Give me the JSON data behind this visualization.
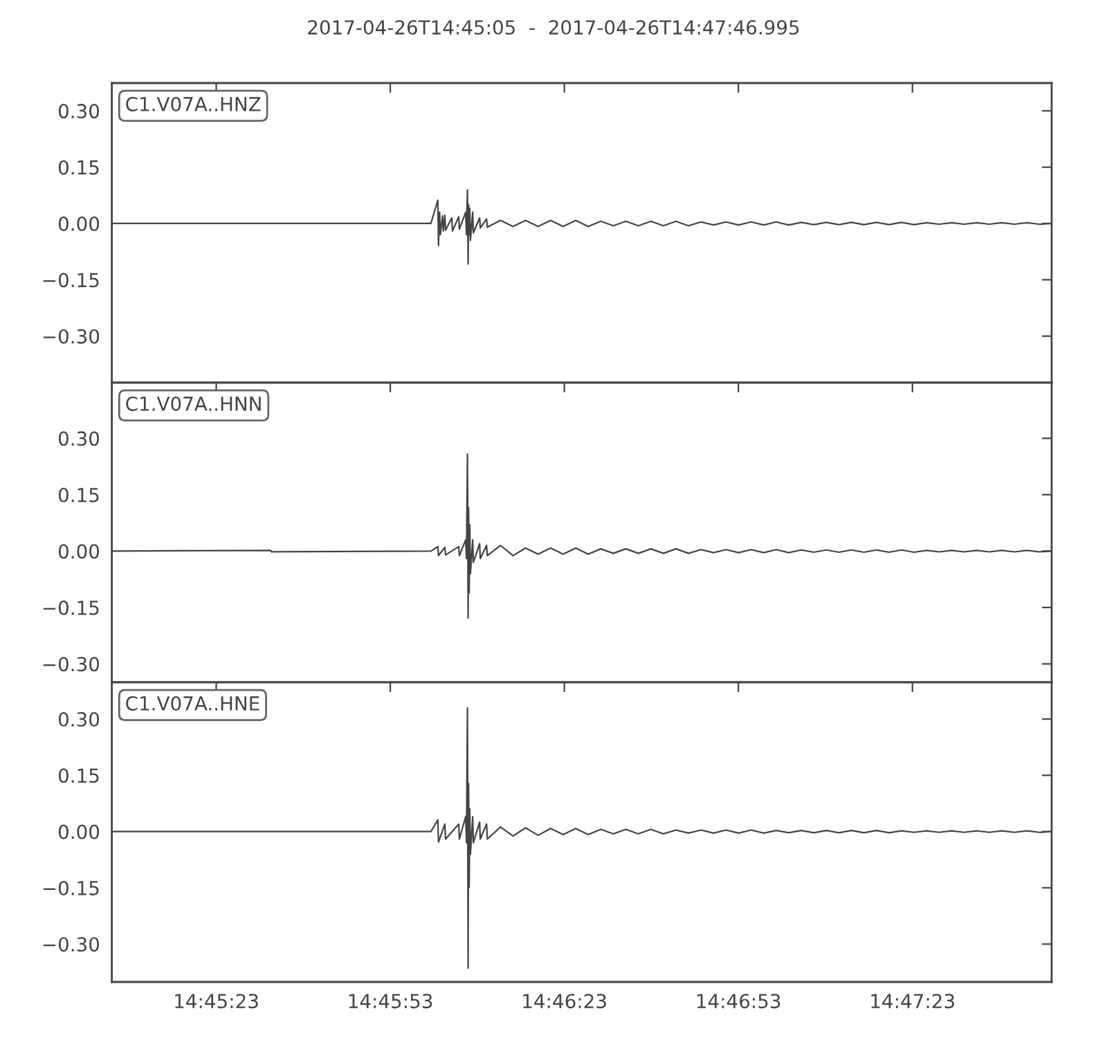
{
  "chart_data": [
    {
      "type": "line",
      "title": "2017-04-26T14:45:05  -  2017-04-26T14:47:46.995",
      "tick_labels": "y",
      "xlim": [
        14.751389,
        14.796388
      ],
      "xticks": [
        {
          "value": 14.756389,
          "label": null
        },
        {
          "value": 14.764722,
          "label": null
        },
        {
          "value": 14.773056,
          "label": null
        },
        {
          "value": 14.781389,
          "label": null
        },
        {
          "value": 14.789722,
          "label": null
        }
      ],
      "ylim": [
        -0.424,
        0.374
      ],
      "yticks": [
        {
          "value": -0.3,
          "label": "−0.30"
        },
        {
          "value": -0.15,
          "label": "−0.15"
        },
        {
          "value": 0,
          "label": "0.00"
        },
        {
          "value": 0.15,
          "label": "0.15"
        },
        {
          "value": 0.3,
          "label": "0.30"
        }
      ],
      "series": [
        {
          "name": "C1.V07A..HNZ",
          "color": "#444444",
          "x": [
            14.751389,
            14.766667,
            14.767,
            14.76703,
            14.767083,
            14.76712,
            14.767222,
            14.76726,
            14.767333,
            14.76737,
            14.767667,
            14.7677,
            14.768,
            14.76803,
            14.768333,
            14.76837,
            14.768417,
            14.76845,
            14.768472,
            14.7685,
            14.768528,
            14.76856,
            14.768667,
            14.7687,
            14.769,
            14.76903,
            14.769333,
            14.76937,
            14.77,
            14.7706,
            14.7712,
            14.7718,
            14.7724,
            14.773,
            14.7736,
            14.7742,
            14.7748,
            14.7754,
            14.776,
            14.7766,
            14.7772,
            14.7778,
            14.7784,
            14.779,
            14.7796,
            14.7802,
            14.7808,
            14.7814,
            14.782,
            14.7826,
            14.7832,
            14.7838,
            14.7844,
            14.785,
            14.7856,
            14.7862,
            14.7868,
            14.7874,
            14.788,
            14.7886,
            14.7892,
            14.7898,
            14.7904,
            14.791,
            14.7916,
            14.7922,
            14.7928,
            14.7934,
            14.794,
            14.7946,
            14.7952,
            14.7958,
            14.796388
          ],
          "values": [
            0,
            0,
            0.062,
            -0.059,
            0.03,
            -0.03,
            0.02,
            -0.02,
            0.022,
            -0.018,
            0.015,
            -0.02,
            0.018,
            -0.015,
            0.03,
            -0.03,
            0.089,
            -0.108,
            0.05,
            -0.03,
            0.04,
            -0.045,
            0.03,
            -0.025,
            0.015,
            -0.012,
            0.012,
            -0.01,
            0.008,
            -0.008,
            0.008,
            -0.008,
            0.008,
            -0.008,
            0.008,
            -0.008,
            0.006,
            -0.006,
            0.006,
            -0.006,
            0.006,
            -0.006,
            0.006,
            -0.006,
            0.004,
            -0.004,
            0.004,
            -0.004,
            0.004,
            -0.004,
            0.004,
            -0.004,
            0.003,
            -0.003,
            0.003,
            -0.003,
            0.003,
            -0.003,
            0.003,
            -0.003,
            0.003,
            -0.003,
            0.002,
            -0.002,
            0.002,
            -0.002,
            0.002,
            -0.002,
            0.002,
            -0.002,
            0.002,
            -0.002,
            0
          ]
        }
      ]
    },
    {
      "type": "line",
      "tick_labels": "y",
      "xlim": [
        14.751389,
        14.796388
      ],
      "xticks": [
        {
          "value": 14.756389,
          "label": null
        },
        {
          "value": 14.764722,
          "label": null
        },
        {
          "value": 14.773056,
          "label": null
        },
        {
          "value": 14.781389,
          "label": null
        },
        {
          "value": 14.789722,
          "label": null
        }
      ],
      "ylim": [
        -0.349,
        0.448
      ],
      "yticks": [
        {
          "value": -0.3,
          "label": "−0.30"
        },
        {
          "value": -0.15,
          "label": "−0.15"
        },
        {
          "value": 0,
          "label": "0.00"
        },
        {
          "value": 0.15,
          "label": "0.15"
        },
        {
          "value": 0.3,
          "label": "0.30"
        }
      ],
      "series": [
        {
          "name": "C1.V07A..HNN",
          "color": "#444444",
          "x": [
            14.751389,
            14.759,
            14.75903,
            14.766667,
            14.767,
            14.76703,
            14.767333,
            14.76737,
            14.768,
            14.76803,
            14.768333,
            14.76837,
            14.768417,
            14.76845,
            14.768472,
            14.7685,
            14.768528,
            14.76856,
            14.768667,
            14.7687,
            14.769,
            14.76903,
            14.769333,
            14.76937,
            14.77,
            14.7706,
            14.7712,
            14.7718,
            14.7724,
            14.773,
            14.7736,
            14.7742,
            14.7748,
            14.7754,
            14.776,
            14.7766,
            14.7772,
            14.7778,
            14.7784,
            14.779,
            14.7796,
            14.7802,
            14.7808,
            14.7814,
            14.782,
            14.7826,
            14.7832,
            14.7838,
            14.7844,
            14.785,
            14.7856,
            14.7862,
            14.7868,
            14.7874,
            14.788,
            14.7886,
            14.7892,
            14.7898,
            14.7904,
            14.791,
            14.7916,
            14.7922,
            14.7928,
            14.7934,
            14.794,
            14.7946,
            14.7952,
            14.7958,
            14.796388
          ],
          "values": [
            0,
            0.002,
            -0.002,
            0,
            0.012,
            -0.012,
            0.01,
            -0.01,
            0.012,
            -0.012,
            0.03,
            -0.02,
            0.258,
            -0.178,
            0.116,
            -0.111,
            0.07,
            -0.06,
            0.03,
            -0.03,
            0.02,
            -0.02,
            0.015,
            -0.012,
            0.015,
            -0.012,
            0.008,
            -0.008,
            0.008,
            -0.008,
            0.008,
            -0.008,
            0.006,
            -0.006,
            0.006,
            -0.006,
            0.006,
            -0.006,
            0.006,
            -0.006,
            0.004,
            -0.004,
            0.004,
            -0.004,
            0.004,
            -0.004,
            0.004,
            -0.004,
            0.003,
            -0.003,
            0.003,
            -0.003,
            0.003,
            -0.003,
            0.003,
            -0.003,
            0.003,
            -0.003,
            0.002,
            -0.002,
            0.002,
            -0.002,
            0.002,
            -0.002,
            0.002,
            -0.002,
            0.002,
            -0.002,
            0
          ]
        }
      ]
    },
    {
      "type": "line",
      "xlim": [
        14.751389,
        14.796388
      ],
      "xticks": [
        {
          "value": 14.756389,
          "label": "14:45:23"
        },
        {
          "value": 14.764722,
          "label": "14:45:53"
        },
        {
          "value": 14.773056,
          "label": "14:46:23"
        },
        {
          "value": 14.781389,
          "label": "14:46:53"
        },
        {
          "value": 14.789722,
          "label": "14:47:23"
        }
      ],
      "ylim": [
        -0.401,
        0.398
      ],
      "yticks": [
        {
          "value": -0.3,
          "label": "−0.30"
        },
        {
          "value": -0.15,
          "label": "−0.15"
        },
        {
          "value": 0,
          "label": "0.00"
        },
        {
          "value": 0.15,
          "label": "0.15"
        },
        {
          "value": 0.3,
          "label": "0.30"
        }
      ],
      "series": [
        {
          "name": "C1.V07A..HNE",
          "color": "#444444",
          "x": [
            14.751389,
            14.766667,
            14.767,
            14.76703,
            14.767333,
            14.76737,
            14.768,
            14.76803,
            14.768333,
            14.76837,
            14.768417,
            14.76845,
            14.768472,
            14.7685,
            14.768528,
            14.76856,
            14.768667,
            14.7687,
            14.769,
            14.76903,
            14.769333,
            14.76937,
            14.77,
            14.7706,
            14.7712,
            14.7718,
            14.7724,
            14.773,
            14.7736,
            14.7742,
            14.7748,
            14.7754,
            14.776,
            14.7766,
            14.7772,
            14.7778,
            14.7784,
            14.779,
            14.7796,
            14.7802,
            14.7808,
            14.7814,
            14.782,
            14.7826,
            14.7832,
            14.7838,
            14.7844,
            14.785,
            14.7856,
            14.7862,
            14.7868,
            14.7874,
            14.788,
            14.7886,
            14.7892,
            14.7898,
            14.7904,
            14.791,
            14.7916,
            14.7922,
            14.7928,
            14.7934,
            14.794,
            14.7946,
            14.7952,
            14.7958,
            14.796388
          ],
          "values": [
            0,
            0,
            0.031,
            -0.028,
            0.02,
            -0.02,
            0.02,
            -0.02,
            0.04,
            -0.03,
            0.33,
            -0.364,
            0.128,
            -0.149,
            0.06,
            -0.06,
            0.04,
            -0.03,
            0.025,
            -0.02,
            0.02,
            -0.02,
            0.012,
            -0.012,
            0.01,
            -0.01,
            0.008,
            -0.008,
            0.008,
            -0.008,
            0.006,
            -0.006,
            0.006,
            -0.006,
            0.006,
            -0.006,
            0.004,
            -0.004,
            0.004,
            -0.004,
            0.004,
            -0.004,
            0.004,
            -0.004,
            0.003,
            -0.003,
            0.003,
            -0.003,
            0.003,
            -0.003,
            0.003,
            -0.003,
            0.003,
            -0.003,
            0.002,
            -0.002,
            0.002,
            -0.002,
            0.002,
            -0.002,
            0.002,
            -0.002,
            0.002,
            -0.002,
            0.002,
            -0.002,
            0
          ]
        }
      ]
    }
  ]
}
